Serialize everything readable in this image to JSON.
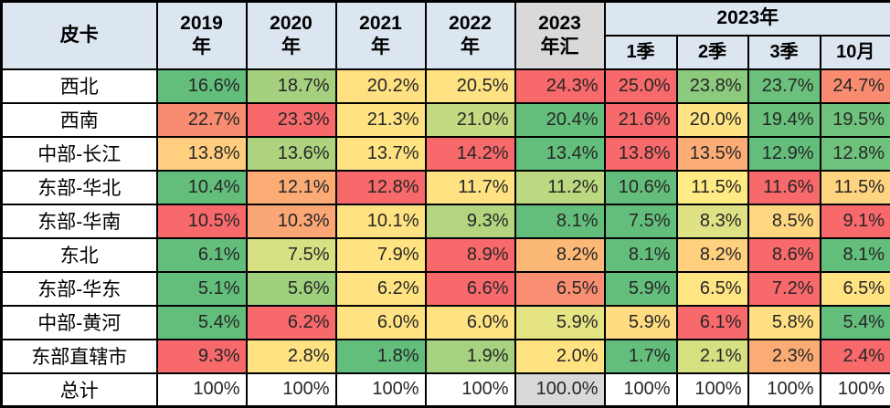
{
  "colors": {
    "header_bg": "#DCE6F1",
    "summary_bg": "#D9D9D9",
    "border": "#000000",
    "scale_low": "#63BE7B",
    "scale_mid": "#FFEB84",
    "scale_high": "#F8696B"
  },
  "table": {
    "corner": "皮卡",
    "year_cols": [
      {
        "l1": "2019",
        "l2": "年"
      },
      {
        "l1": "2020",
        "l2": "年"
      },
      {
        "l1": "2021",
        "l2": "年"
      },
      {
        "l1": "2022",
        "l2": "年"
      },
      {
        "l1": "2023",
        "l2": "年汇"
      }
    ],
    "group_header": "2023年",
    "quarter_cols": [
      "1季",
      "2季",
      "3季",
      "10月"
    ],
    "rows": [
      {
        "label": "西北",
        "cells": [
          {
            "v": "16.6%",
            "bg": "#63BE7B"
          },
          {
            "v": "18.7%",
            "bg": "#A5D17F"
          },
          {
            "v": "20.2%",
            "bg": "#FFE182"
          },
          {
            "v": "20.5%",
            "bg": "#FFE383"
          },
          {
            "v": "24.3%",
            "bg": "#F8696B"
          },
          {
            "v": "25.0%",
            "bg": "#F8696B"
          },
          {
            "v": "23.8%",
            "bg": "#8CCB7E"
          },
          {
            "v": "23.7%",
            "bg": "#6BC17C"
          },
          {
            "v": "24.7%",
            "bg": "#F98C70"
          }
        ]
      },
      {
        "label": "西南",
        "cells": [
          {
            "v": "22.7%",
            "bg": "#F98C70"
          },
          {
            "v": "23.3%",
            "bg": "#F8696B"
          },
          {
            "v": "21.3%",
            "bg": "#FFE383"
          },
          {
            "v": "21.0%",
            "bg": "#C4DA81"
          },
          {
            "v": "20.4%",
            "bg": "#63BE7B"
          },
          {
            "v": "21.6%",
            "bg": "#F8696B"
          },
          {
            "v": "20.0%",
            "bg": "#FFE383"
          },
          {
            "v": "19.4%",
            "bg": "#68C07B"
          },
          {
            "v": "19.5%",
            "bg": "#6EC27C"
          }
        ]
      },
      {
        "label": "中部-长江",
        "cells": [
          {
            "v": "13.8%",
            "bg": "#FFCE7E"
          },
          {
            "v": "13.6%",
            "bg": "#AED37F"
          },
          {
            "v": "13.7%",
            "bg": "#FFE383"
          },
          {
            "v": "14.2%",
            "bg": "#F8696B"
          },
          {
            "v": "13.4%",
            "bg": "#63BE7B"
          },
          {
            "v": "13.8%",
            "bg": "#F8696B"
          },
          {
            "v": "13.5%",
            "bg": "#FCAD75"
          },
          {
            "v": "12.9%",
            "bg": "#63BE7B"
          },
          {
            "v": "12.8%",
            "bg": "#6FC27C"
          }
        ]
      },
      {
        "label": "东部-华北",
        "cells": [
          {
            "v": "10.4%",
            "bg": "#63BE7B"
          },
          {
            "v": "12.1%",
            "bg": "#FBAC75"
          },
          {
            "v": "12.8%",
            "bg": "#F8696B"
          },
          {
            "v": "11.7%",
            "bg": "#FFE383"
          },
          {
            "v": "11.2%",
            "bg": "#BCD880"
          },
          {
            "v": "10.6%",
            "bg": "#63BE7B"
          },
          {
            "v": "11.5%",
            "bg": "#FFEB84"
          },
          {
            "v": "11.6%",
            "bg": "#F8696B"
          },
          {
            "v": "11.5%",
            "bg": "#FFD480"
          }
        ]
      },
      {
        "label": "东部-华南",
        "cells": [
          {
            "v": "10.5%",
            "bg": "#F8696B"
          },
          {
            "v": "10.3%",
            "bg": "#FBA775"
          },
          {
            "v": "10.1%",
            "bg": "#FFE383"
          },
          {
            "v": "9.3%",
            "bg": "#B3D580"
          },
          {
            "v": "8.1%",
            "bg": "#63BE7B"
          },
          {
            "v": "7.5%",
            "bg": "#63BE7B"
          },
          {
            "v": "8.3%",
            "bg": "#DFE284"
          },
          {
            "v": "8.5%",
            "bg": "#FFD780"
          },
          {
            "v": "9.1%",
            "bg": "#F8696B"
          }
        ]
      },
      {
        "label": "东北",
        "cells": [
          {
            "v": "6.1%",
            "bg": "#63BE7B"
          },
          {
            "v": "7.5%",
            "bg": "#D7E083"
          },
          {
            "v": "7.9%",
            "bg": "#FFE383"
          },
          {
            "v": "8.9%",
            "bg": "#F8696B"
          },
          {
            "v": "8.2%",
            "bg": "#FBB876"
          },
          {
            "v": "8.1%",
            "bg": "#63BE7B"
          },
          {
            "v": "8.2%",
            "bg": "#FFD07E"
          },
          {
            "v": "8.6%",
            "bg": "#F8696B"
          },
          {
            "v": "8.1%",
            "bg": "#63BE7B"
          }
        ]
      },
      {
        "label": "东部-华东",
        "cells": [
          {
            "v": "5.1%",
            "bg": "#63BE7B"
          },
          {
            "v": "5.6%",
            "bg": "#9ED07E"
          },
          {
            "v": "6.2%",
            "bg": "#FFE383"
          },
          {
            "v": "6.6%",
            "bg": "#F8696B"
          },
          {
            "v": "6.5%",
            "bg": "#F98E72"
          },
          {
            "v": "5.9%",
            "bg": "#63BE7B"
          },
          {
            "v": "6.5%",
            "bg": "#FFE483"
          },
          {
            "v": "7.2%",
            "bg": "#F8696B"
          },
          {
            "v": "6.5%",
            "bg": "#FFE383"
          }
        ]
      },
      {
        "label": "中部-黄河",
        "cells": [
          {
            "v": "5.4%",
            "bg": "#63BE7B"
          },
          {
            "v": "6.2%",
            "bg": "#F8696B"
          },
          {
            "v": "6.0%",
            "bg": "#FFE383"
          },
          {
            "v": "6.0%",
            "bg": "#FFE383"
          },
          {
            "v": "5.9%",
            "bg": "#E4E483"
          },
          {
            "v": "5.9%",
            "bg": "#FFDC81"
          },
          {
            "v": "6.1%",
            "bg": "#F8696B"
          },
          {
            "v": "5.8%",
            "bg": "#FFDF82"
          },
          {
            "v": "5.4%",
            "bg": "#63BE7B"
          }
        ]
      },
      {
        "label": "东部直辖市",
        "cells": [
          {
            "v": "9.3%",
            "bg": "#F8696B"
          },
          {
            "v": "2.8%",
            "bg": "#FFE383"
          },
          {
            "v": "1.8%",
            "bg": "#63BE7B"
          },
          {
            "v": "1.9%",
            "bg": "#A7D27F"
          },
          {
            "v": "2.0%",
            "bg": "#FFE383"
          },
          {
            "v": "1.7%",
            "bg": "#63BE7B"
          },
          {
            "v": "2.1%",
            "bg": "#D5E081"
          },
          {
            "v": "2.3%",
            "bg": "#FBAC75"
          },
          {
            "v": "2.4%",
            "bg": "#F8696B"
          }
        ]
      },
      {
        "label": "总计",
        "cells": [
          {
            "v": "100%",
            "bg": "#FFFFFF"
          },
          {
            "v": "100%",
            "bg": "#FFFFFF"
          },
          {
            "v": "100%",
            "bg": "#FFFFFF"
          },
          {
            "v": "100%",
            "bg": "#FFFFFF"
          },
          {
            "v": "100.0%",
            "bg": "#D9D9D9"
          },
          {
            "v": "100%",
            "bg": "#FFFFFF"
          },
          {
            "v": "100%",
            "bg": "#FFFFFF"
          },
          {
            "v": "100%",
            "bg": "#FFFFFF"
          },
          {
            "v": "100%",
            "bg": "#FFFFFF"
          }
        ]
      }
    ]
  },
  "chart_data": {
    "type": "heatmap",
    "title": "皮卡",
    "columns": [
      "2019年",
      "2020年",
      "2021年",
      "2022年",
      "2023年汇",
      "2023年1季",
      "2023年2季",
      "2023年3季",
      "2023年10月"
    ],
    "rows": [
      "西北",
      "西南",
      "中部-长江",
      "东部-华北",
      "东部-华南",
      "东北",
      "东部-华东",
      "中部-黄河",
      "东部直辖市",
      "总计"
    ],
    "values_pct": [
      [
        16.6,
        18.7,
        20.2,
        20.5,
        24.3,
        25.0,
        23.8,
        23.7,
        24.7
      ],
      [
        22.7,
        23.3,
        21.3,
        21.0,
        20.4,
        21.6,
        20.0,
        19.4,
        19.5
      ],
      [
        13.8,
        13.6,
        13.7,
        14.2,
        13.4,
        13.8,
        13.5,
        12.9,
        12.8
      ],
      [
        10.4,
        12.1,
        12.8,
        11.7,
        11.2,
        10.6,
        11.5,
        11.6,
        11.5
      ],
      [
        10.5,
        10.3,
        10.1,
        9.3,
        8.1,
        7.5,
        8.3,
        8.5,
        9.1
      ],
      [
        6.1,
        7.5,
        7.9,
        8.9,
        8.2,
        8.1,
        8.2,
        8.6,
        8.1
      ],
      [
        5.1,
        5.6,
        6.2,
        6.6,
        6.5,
        5.9,
        6.5,
        7.2,
        6.5
      ],
      [
        5.4,
        6.2,
        6.0,
        6.0,
        5.9,
        5.9,
        6.1,
        5.8,
        5.4
      ],
      [
        9.3,
        2.8,
        1.8,
        1.9,
        2.0,
        1.7,
        2.1,
        2.3,
        2.4
      ],
      [
        100,
        100,
        100,
        100,
        100.0,
        100,
        100,
        100,
        100
      ]
    ],
    "color_scale": [
      "#F8696B",
      "#FFEB84",
      "#63BE7B"
    ],
    "legend_position": "none",
    "grid": true
  }
}
